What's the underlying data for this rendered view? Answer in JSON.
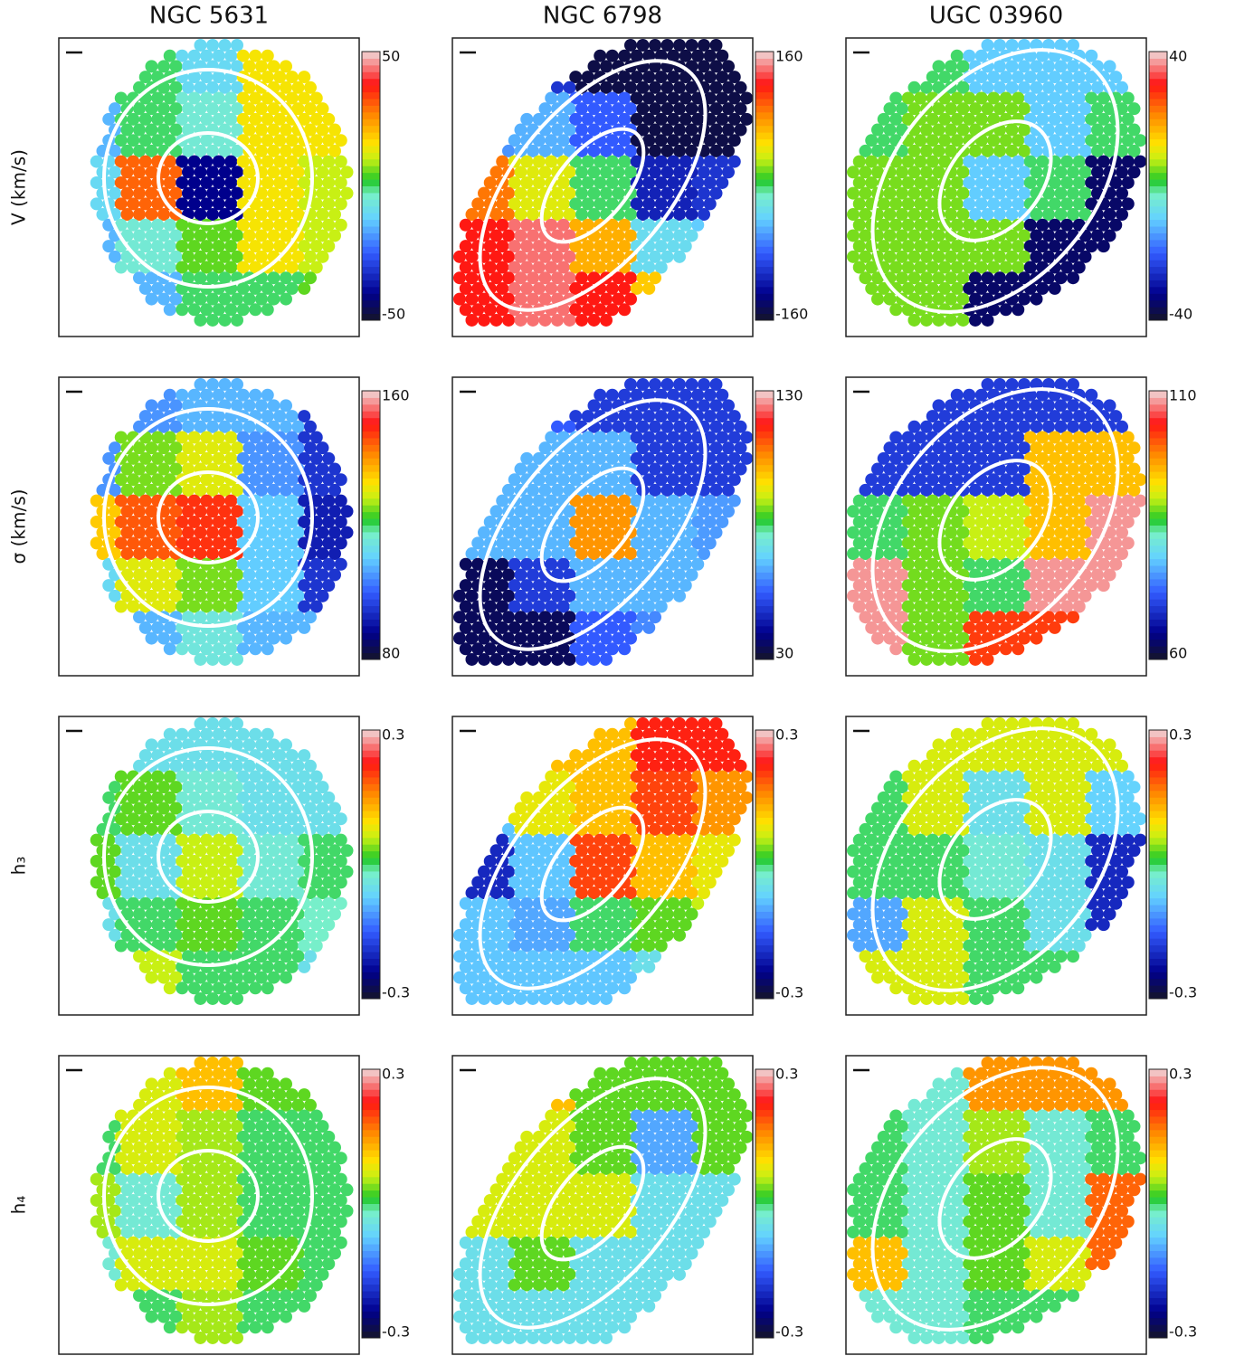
{
  "columns": [
    "NGC 5631",
    "NGC 6798",
    "UGC 03960"
  ],
  "rows": [
    "V (km/s)",
    "σ (km/s)",
    "h₃",
    "h₄"
  ],
  "chart_data": [
    {
      "type": "map",
      "clim": [
        -50,
        50
      ],
      "cticks": [
        -50,
        50
      ],
      "grid": [
        [
          5,
          0,
          -10,
          15,
          15
        ],
        [
          -15,
          0,
          -5,
          15,
          15
        ],
        [
          -10,
          30,
          -40,
          15,
          10
        ],
        [
          -15,
          -5,
          5,
          15,
          10
        ],
        [
          -20,
          -15,
          0,
          0,
          5
        ]
      ]
    },
    {
      "type": "map",
      "clim": [
        -160,
        160
      ],
      "cticks": [
        -160,
        160
      ],
      "grid": [
        [
          -60,
          -100,
          -150,
          -150,
          -150
        ],
        [
          -60,
          -50,
          -80,
          -150,
          -150
        ],
        [
          90,
          40,
          0,
          -110,
          -100
        ],
        [
          120,
          140,
          70,
          -30,
          -40
        ],
        [
          120,
          140,
          120,
          60,
          0
        ]
      ]
    },
    {
      "type": "map",
      "clim": [
        -40,
        40
      ],
      "cticks": [
        -40,
        40
      ],
      "grid": [
        [
          0,
          0,
          -10,
          -10,
          -10
        ],
        [
          0,
          5,
          5,
          -10,
          0
        ],
        [
          5,
          5,
          -10,
          0,
          -35
        ],
        [
          5,
          5,
          5,
          -35,
          -35
        ],
        [
          5,
          5,
          -35,
          -35,
          -35
        ]
      ]
    },
    {
      "type": "map",
      "clim": [
        80,
        160
      ],
      "cticks": [
        80,
        160
      ],
      "grid": [
        [
          105,
          105,
          108,
          108,
          95
        ],
        [
          105,
          125,
          130,
          105,
          95
        ],
        [
          135,
          145,
          148,
          110,
          92
        ],
        [
          112,
          130,
          125,
          110,
          95
        ],
        [
          112,
          108,
          115,
          108,
          108
        ]
      ]
    },
    {
      "type": "map",
      "clim": [
        30,
        130
      ],
      "cticks": [
        30,
        130
      ],
      "grid": [
        [
          65,
          55,
          50,
          50,
          50
        ],
        [
          65,
          65,
          65,
          50,
          50
        ],
        [
          65,
          65,
          105,
          65,
          62
        ],
        [
          35,
          50,
          65,
          65,
          65
        ],
        [
          35,
          35,
          55,
          60,
          65
        ]
      ]
    },
    {
      "type": "map",
      "clim": [
        60,
        110
      ],
      "cticks": [
        60,
        110
      ],
      "grid": [
        [
          70,
          70,
          70,
          70,
          70
        ],
        [
          70,
          70,
          70,
          95,
          95
        ],
        [
          85,
          88,
          90,
          95,
          108
        ],
        [
          108,
          88,
          85,
          108,
          108
        ],
        [
          108,
          88,
          102,
          102,
          108
        ]
      ]
    },
    {
      "type": "map",
      "clim": [
        -0.3,
        0.3
      ],
      "cticks": [
        -0.3,
        0.3
      ],
      "grid": [
        [
          -0.05,
          -0.05,
          -0.05,
          -0.05,
          -0.05
        ],
        [
          0.0,
          0.03,
          -0.03,
          -0.05,
          -0.05
        ],
        [
          0.03,
          -0.05,
          0.06,
          -0.03,
          0.0
        ],
        [
          -0.05,
          0.0,
          0.03,
          0.0,
          -0.02
        ],
        [
          0.06,
          0.06,
          0.0,
          0.0,
          -0.05
        ]
      ]
    },
    {
      "type": "map",
      "clim": [
        -0.3,
        0.3
      ],
      "cticks": [
        -0.3,
        0.3
      ],
      "grid": [
        [
          -0.08,
          0.12,
          0.12,
          0.22,
          0.22
        ],
        [
          -0.08,
          0.08,
          0.12,
          0.2,
          0.15
        ],
        [
          -0.2,
          -0.08,
          0.2,
          0.12,
          0.08
        ],
        [
          -0.08,
          -0.1,
          0.0,
          0.03,
          0.06
        ],
        [
          -0.08,
          -0.08,
          -0.08,
          -0.05,
          0.0
        ]
      ]
    },
    {
      "type": "map",
      "clim": [
        -0.3,
        0.3
      ],
      "cticks": [
        -0.3,
        0.3
      ],
      "grid": [
        [
          0.07,
          0.07,
          0.07,
          0.07,
          0.07
        ],
        [
          0.0,
          0.07,
          -0.05,
          0.07,
          -0.07
        ],
        [
          0.0,
          0.0,
          -0.03,
          -0.05,
          -0.2
        ],
        [
          -0.1,
          0.07,
          0.0,
          -0.05,
          -0.2
        ],
        [
          0.07,
          0.07,
          0.0,
          0.0,
          -0.2
        ]
      ]
    },
    {
      "type": "map",
      "clim": [
        -0.3,
        0.3
      ],
      "cticks": [
        -0.3,
        0.3
      ],
      "grid": [
        [
          0.07,
          0.07,
          0.12,
          0.03,
          0.03
        ],
        [
          0.0,
          0.07,
          0.05,
          0.0,
          0.0
        ],
        [
          0.05,
          -0.03,
          0.05,
          0.0,
          0.0
        ],
        [
          -0.03,
          0.07,
          0.07,
          0.03,
          0.0
        ],
        [
          0.0,
          0.0,
          0.05,
          0.0,
          0.0
        ]
      ]
    },
    {
      "type": "map",
      "clim": [
        -0.3,
        0.3
      ],
      "cticks": [
        -0.3,
        0.3
      ],
      "grid": [
        [
          0.03,
          0.12,
          0.03,
          0.03,
          0.03
        ],
        [
          0.07,
          0.07,
          0.03,
          -0.1,
          0.03
        ],
        [
          0.07,
          0.07,
          0.07,
          -0.05,
          -0.05
        ],
        [
          -0.05,
          0.03,
          -0.05,
          -0.05,
          -0.05
        ],
        [
          -0.05,
          -0.05,
          -0.05,
          -0.05,
          -0.05
        ]
      ]
    },
    {
      "type": "map",
      "clim": [
        -0.3,
        0.3
      ],
      "cticks": [
        -0.3,
        0.3
      ],
      "grid": [
        [
          -0.03,
          -0.03,
          0.15,
          0.15,
          0.15
        ],
        [
          0.0,
          -0.03,
          0.05,
          -0.03,
          0.0
        ],
        [
          0.0,
          -0.03,
          0.03,
          -0.03,
          0.18
        ],
        [
          0.12,
          -0.03,
          0.03,
          0.07,
          0.18
        ],
        [
          -0.03,
          -0.03,
          0.0,
          0.0,
          0.18
        ]
      ]
    }
  ]
}
